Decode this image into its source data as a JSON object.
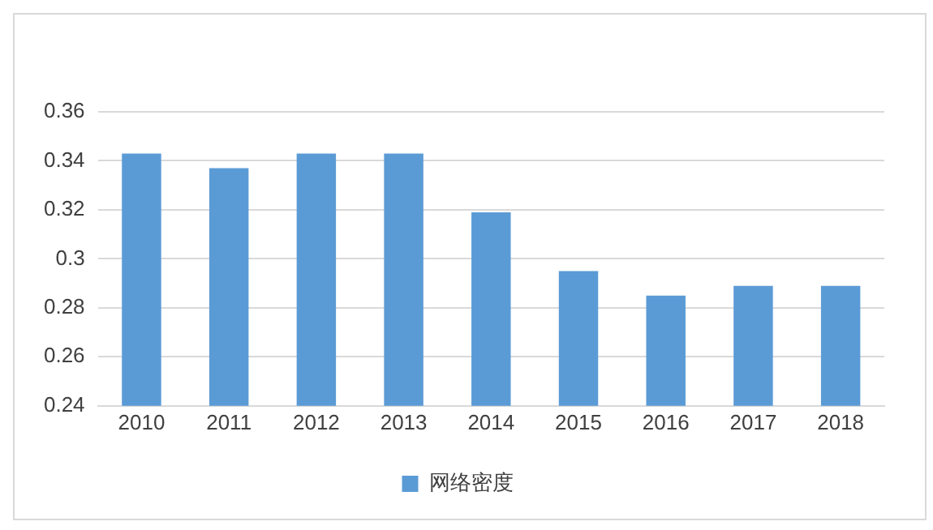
{
  "chart_data": {
    "type": "bar",
    "categories": [
      "2010",
      "2011",
      "2012",
      "2013",
      "2014",
      "2015",
      "2016",
      "2017",
      "2018"
    ],
    "series": [
      {
        "name": "网络密度",
        "color": "#5b9bd5",
        "values": [
          0.343,
          0.337,
          0.343,
          0.343,
          0.319,
          0.295,
          0.285,
          0.289,
          0.289
        ]
      }
    ],
    "ylim": [
      0.24,
      0.36
    ],
    "yticks": [
      0.24,
      0.26,
      0.28,
      0.3,
      0.32,
      0.34,
      0.36
    ],
    "grid": "y",
    "legend": "bottom"
  }
}
